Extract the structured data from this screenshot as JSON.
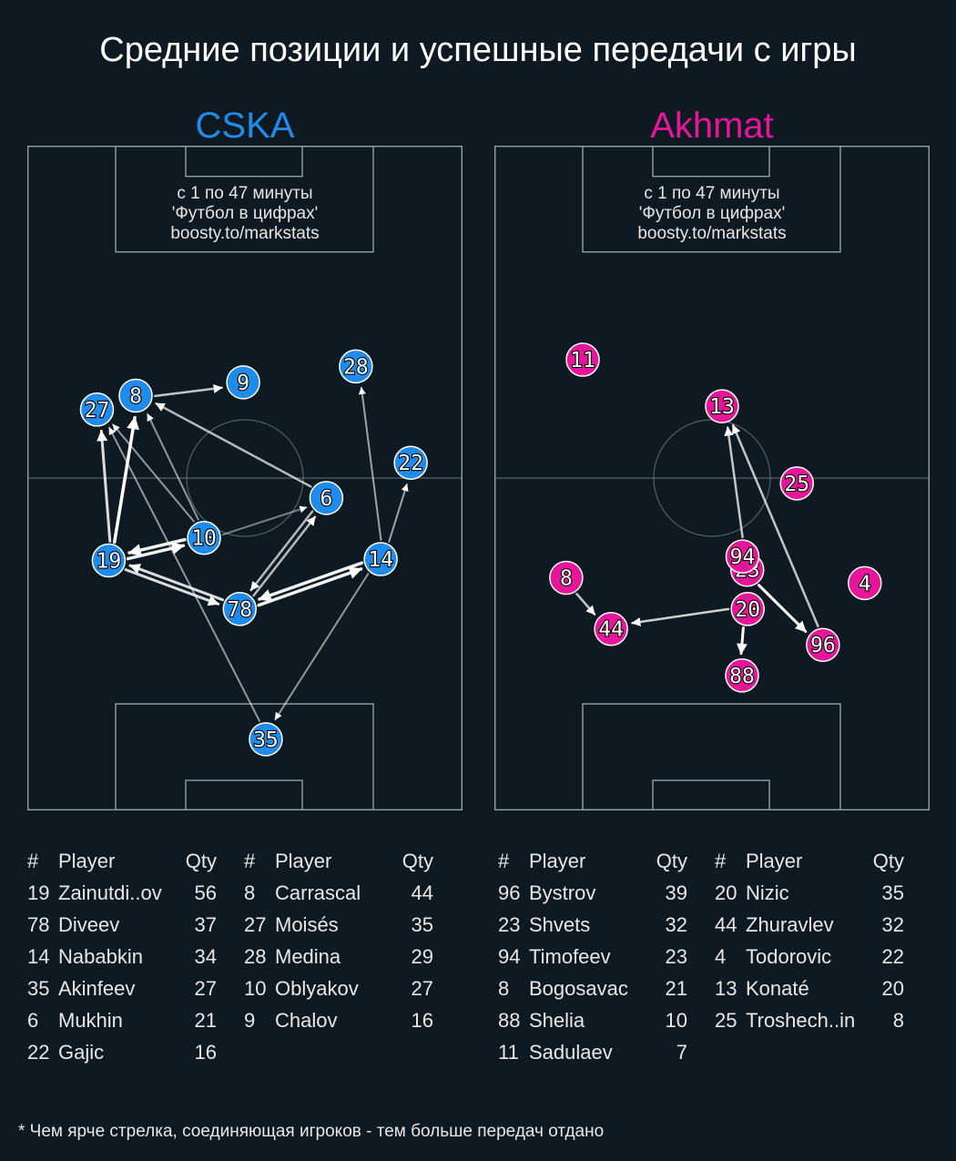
{
  "title": "Средние позиции и успешные передачи с игры",
  "footnote": "* Чем ярче стрелка, соединяющая игроков - тем больше передач отдано",
  "colors": {
    "background": "#0e1921",
    "pitch_lines": "#8fa3a8",
    "cska": "#1f8ceb",
    "akhmat": "#e6169b"
  },
  "stats_header": {
    "num": "#",
    "player": "Player",
    "qty": "Qty"
  },
  "chart_data": [
    {
      "type": "scatter",
      "team": "CSKA",
      "color": "#1f8ceb",
      "note": [
        "с 1 по 47 минуты",
        "'Футбол в цифрах'",
        "boosty.to/markstats"
      ],
      "players": [
        {
          "num": "8",
          "x": 24.9,
          "y": 62.4
        },
        {
          "num": "9",
          "x": 49.6,
          "y": 64.4
        },
        {
          "num": "27",
          "x": 16.0,
          "y": 60.3
        },
        {
          "num": "28",
          "x": 75.5,
          "y": 66.8
        },
        {
          "num": "22",
          "x": 88.1,
          "y": 52.3
        },
        {
          "num": "6",
          "x": 68.7,
          "y": 47.0
        },
        {
          "num": "10",
          "x": 40.6,
          "y": 41.0
        },
        {
          "num": "19",
          "x": 18.7,
          "y": 37.6
        },
        {
          "num": "14",
          "x": 81.2,
          "y": 37.8
        },
        {
          "num": "78",
          "x": 48.8,
          "y": 30.3
        },
        {
          "num": "35",
          "x": 54.8,
          "y": 10.7
        }
      ],
      "passes": [
        {
          "from": "8",
          "to": "9",
          "opacity": 0.75,
          "width": 2.5
        },
        {
          "from": "19",
          "to": "8",
          "opacity": 1.0,
          "width": 3.5
        },
        {
          "from": "19",
          "to": "27",
          "opacity": 0.85,
          "width": 3
        },
        {
          "from": "19",
          "to": "10",
          "opacity": 0.95,
          "width": 3.5
        },
        {
          "from": "10",
          "to": "19",
          "opacity": 0.95,
          "width": 3.5
        },
        {
          "from": "10",
          "to": "8",
          "opacity": 0.55,
          "width": 2
        },
        {
          "from": "10",
          "to": "27",
          "opacity": 0.55,
          "width": 2
        },
        {
          "from": "10",
          "to": "6",
          "opacity": 0.45,
          "width": 2
        },
        {
          "from": "6",
          "to": "8",
          "opacity": 0.7,
          "width": 2.5
        },
        {
          "from": "6",
          "to": "78",
          "opacity": 0.7,
          "width": 2.5
        },
        {
          "from": "78",
          "to": "6",
          "opacity": 0.7,
          "width": 2.5
        },
        {
          "from": "78",
          "to": "19",
          "opacity": 0.85,
          "width": 3
        },
        {
          "from": "19",
          "to": "78",
          "opacity": 0.85,
          "width": 3
        },
        {
          "from": "78",
          "to": "14",
          "opacity": 0.95,
          "width": 3.5
        },
        {
          "from": "14",
          "to": "78",
          "opacity": 0.95,
          "width": 3.5
        },
        {
          "from": "14",
          "to": "28",
          "opacity": 0.6,
          "width": 2
        },
        {
          "from": "14",
          "to": "22",
          "opacity": 0.6,
          "width": 2
        },
        {
          "from": "14",
          "to": "35",
          "opacity": 0.55,
          "width": 2
        },
        {
          "from": "35",
          "to": "27",
          "opacity": 0.55,
          "width": 2
        }
      ],
      "table": [
        [
          {
            "num": "19",
            "player": "Zainutdi..ov",
            "qty": "56"
          },
          {
            "num": "78",
            "player": "Diveev",
            "qty": "37"
          },
          {
            "num": "14",
            "player": "Nababkin",
            "qty": "34"
          },
          {
            "num": "35",
            "player": "Akinfeev",
            "qty": "27"
          },
          {
            "num": "6",
            "player": "Mukhin",
            "qty": "21"
          },
          {
            "num": "22",
            "player": "Gajic",
            "qty": "16"
          }
        ],
        [
          {
            "num": "8",
            "player": "Carrascal",
            "qty": "44"
          },
          {
            "num": "27",
            "player": "Moisés",
            "qty": "35"
          },
          {
            "num": "28",
            "player": "Medina",
            "qty": "29"
          },
          {
            "num": "10",
            "player": "Oblyakov",
            "qty": "27"
          },
          {
            "num": "9",
            "player": "Chalov",
            "qty": "16"
          }
        ]
      ]
    },
    {
      "type": "scatter",
      "team": "Akhmat",
      "color": "#e6169b",
      "note": [
        "с 1 по 47 минуты",
        "'Футбол в цифрах'",
        "boosty.to/markstats"
      ],
      "players": [
        {
          "num": "11",
          "x": 20.3,
          "y": 67.8
        },
        {
          "num": "13",
          "x": 52.3,
          "y": 60.8
        },
        {
          "num": "25",
          "x": 69.5,
          "y": 49.2
        },
        {
          "num": "23",
          "x": 58.1,
          "y": 36.2
        },
        {
          "num": "94",
          "x": 57.0,
          "y": 38.2
        },
        {
          "num": "4",
          "x": 85.1,
          "y": 34.2
        },
        {
          "num": "8",
          "x": 16.5,
          "y": 35.0
        },
        {
          "num": "44",
          "x": 26.8,
          "y": 27.3
        },
        {
          "num": "20",
          "x": 58.2,
          "y": 30.3
        },
        {
          "num": "96",
          "x": 75.5,
          "y": 24.9
        },
        {
          "num": "88",
          "x": 56.9,
          "y": 20.3
        }
      ],
      "passes": [
        {
          "from": "94",
          "to": "13",
          "opacity": 0.75,
          "width": 2.5
        },
        {
          "from": "96",
          "to": "13",
          "opacity": 0.75,
          "width": 2.5
        },
        {
          "from": "8",
          "to": "44",
          "opacity": 0.75,
          "width": 2.5
        },
        {
          "from": "20",
          "to": "44",
          "opacity": 0.8,
          "width": 2.5
        },
        {
          "from": "23",
          "to": "96",
          "opacity": 1.0,
          "width": 3
        },
        {
          "from": "20",
          "to": "88",
          "opacity": 1.0,
          "width": 3
        }
      ],
      "table": [
        [
          {
            "num": "96",
            "player": "Bystrov",
            "qty": "39"
          },
          {
            "num": "23",
            "player": "Shvets",
            "qty": "32"
          },
          {
            "num": "94",
            "player": "Timofeev",
            "qty": "23"
          },
          {
            "num": "8",
            "player": "Bogosavac",
            "qty": "21"
          },
          {
            "num": "88",
            "player": "Shelia",
            "qty": "10"
          },
          {
            "num": "11",
            "player": "Sadulaev",
            "qty": "7"
          }
        ],
        [
          {
            "num": "20",
            "player": "Nizic",
            "qty": "35"
          },
          {
            "num": "44",
            "player": "Zhuravlev",
            "qty": "32"
          },
          {
            "num": "4",
            "player": "Todorovic",
            "qty": "22"
          },
          {
            "num": "13",
            "player": "Konaté",
            "qty": "20"
          },
          {
            "num": "25",
            "player": "Troshech..in",
            "qty": "8"
          }
        ]
      ]
    }
  ]
}
